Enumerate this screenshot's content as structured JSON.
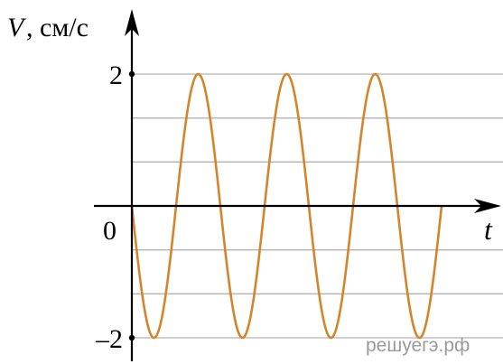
{
  "chart_data": {
    "type": "line",
    "xlabel": "t",
    "ylabel_var": "V",
    "ylabel_unit": ", см/с",
    "origin_label": "0",
    "y_tick_labels": [
      "2",
      "–2"
    ],
    "y_ticks": [
      2,
      -2
    ],
    "ylim": [
      -2,
      2
    ],
    "xlim": [
      0,
      3.5
    ],
    "grid": "horizontal",
    "series": [
      {
        "function": "-A·sin(2π·t/T)",
        "amplitude": 2,
        "period": 1,
        "t_start": 0,
        "t_end": 3.5
      }
    ]
  },
  "colors": {
    "curve": "#d4852a",
    "axes": "#000000",
    "grid": "#b3b3b3",
    "watermark": "#9a9a9a"
  },
  "watermark": "решуегэ.рф"
}
